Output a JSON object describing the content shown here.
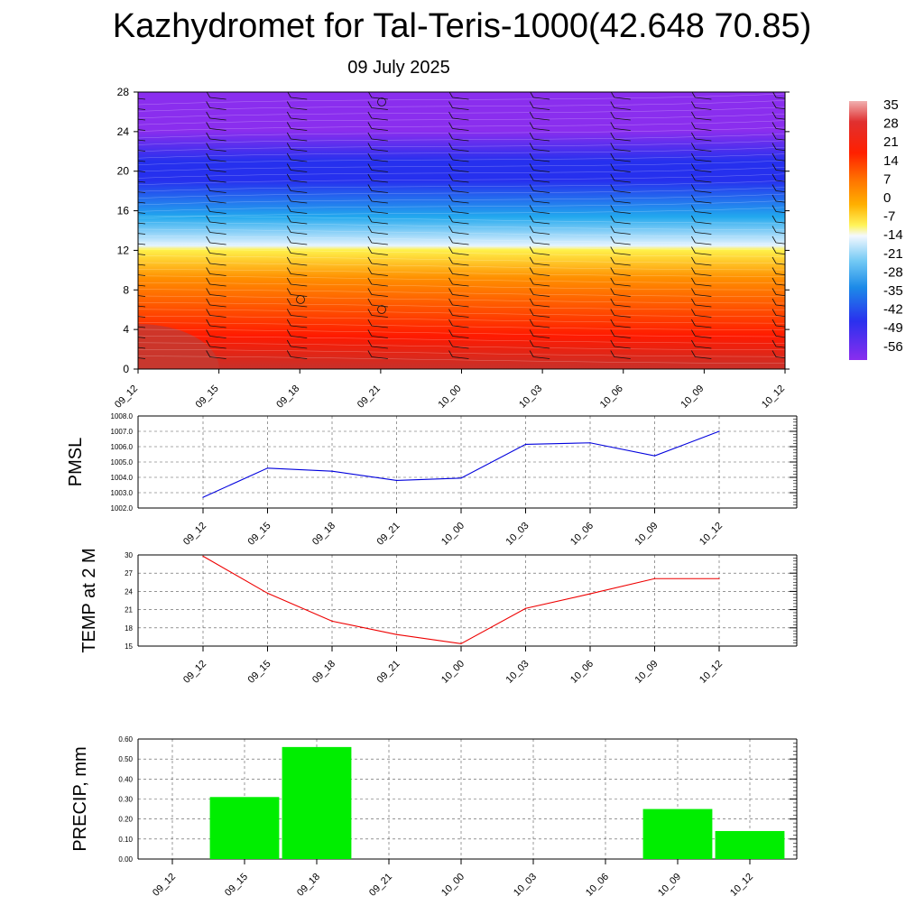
{
  "title": "Kazhydromet for Tal-Teris-1000(42.648 70.85)",
  "subtitle": "09 July 2025",
  "time_labels": [
    "09_12",
    "09_15",
    "09_18",
    "09_21",
    "10_00",
    "10_03",
    "10_06",
    "10_09",
    "10_12"
  ],
  "cross_section": {
    "y_ticks": [
      "0",
      "4",
      "8",
      "12",
      "16",
      "20",
      "24",
      "28"
    ],
    "y_range": [
      0,
      28
    ],
    "colorbar_labels": [
      "35",
      "28",
      "21",
      "14",
      "7",
      "0",
      "-7",
      "-14",
      "-21",
      "-28",
      "-35",
      "-42",
      "-49",
      "-56"
    ],
    "colors": {
      "warm": "#ff1a00",
      "hot": "#c8302a",
      "orange": "#ff9000",
      "yellow": "#fff14a",
      "pale": "#e6f4ff",
      "cyan": "#22a8ee",
      "blue": "#2630ee",
      "violet": "#8a2eee"
    }
  },
  "chart_data": [
    {
      "type": "line",
      "ylabel": "PMSL",
      "x": [
        "09_12",
        "09_15",
        "09_18",
        "09_21",
        "10_00",
        "10_03",
        "10_06",
        "10_09",
        "10_12"
      ],
      "values": [
        1002.7,
        1004.6,
        1004.4,
        1003.8,
        1003.95,
        1006.15,
        1006.25,
        1005.4,
        1007.0
      ],
      "ylim": [
        1002.0,
        1008.0
      ],
      "y_ticks": [
        "1002.0",
        "1003.0",
        "1004.0",
        "1005.0",
        "1006.0",
        "1007.0",
        "1008.0"
      ],
      "color": "#0000dd",
      "grid": true
    },
    {
      "type": "line",
      "ylabel": "TEMP at 2 M",
      "x": [
        "09_12",
        "09_15",
        "09_18",
        "09_21",
        "10_00",
        "10_03",
        "10_06",
        "10_09",
        "10_12"
      ],
      "values": [
        29.8,
        23.7,
        19.1,
        16.9,
        15.4,
        21.2,
        23.6,
        26.1,
        26.1
      ],
      "ylim": [
        15,
        30
      ],
      "y_ticks": [
        "15",
        "18",
        "21",
        "24",
        "27",
        "30"
      ],
      "color": "#ee0000",
      "grid": true
    },
    {
      "type": "bar",
      "ylabel": "PRECIP, mm",
      "categories": [
        "09_12",
        "09_15",
        "09_18",
        "09_21",
        "10_00",
        "10_03",
        "10_06",
        "10_09",
        "10_12"
      ],
      "values": [
        0,
        0.31,
        0.56,
        0,
        0,
        0,
        0,
        0.25,
        0.14
      ],
      "ylim": [
        0,
        0.6
      ],
      "y_ticks": [
        "0.00",
        "0.10",
        "0.20",
        "0.30",
        "0.40",
        "0.50",
        "0.60"
      ],
      "color": "#00ee00",
      "grid": true
    }
  ]
}
